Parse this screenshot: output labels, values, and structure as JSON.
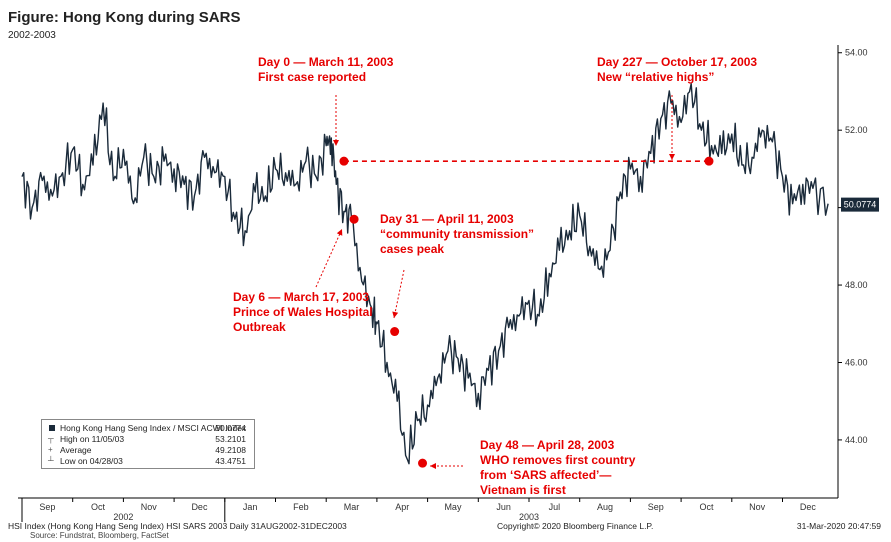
{
  "title": "Figure: Hong Kong during SARS",
  "subtitle": "2002-2003",
  "chart_data": {
    "type": "line",
    "title": "Figure: Hong Kong during SARS",
    "subtitle": "2002-2003",
    "series": [
      {
        "name": "Hong Kong Hang Seng Index / MSCI ACWI Index",
        "color": "#1a2a3a",
        "x_months": [
          0.0,
          0.2,
          0.4,
          0.6,
          0.8,
          1.0,
          1.2,
          1.4,
          1.6,
          1.8,
          2.0,
          2.2,
          2.4,
          2.6,
          2.8,
          3.0,
          3.2,
          3.4,
          3.6,
          3.8,
          4.0,
          4.2,
          4.4,
          4.6,
          4.8,
          5.0,
          5.2,
          5.4,
          5.6,
          5.8,
          6.0,
          6.1,
          6.2,
          6.35,
          6.5,
          6.7,
          6.9,
          7.0,
          7.2,
          7.4,
          7.6,
          7.8,
          8.0,
          8.2,
          8.4,
          8.6,
          8.8,
          9.0,
          9.2,
          9.4,
          9.6,
          9.8,
          10.0,
          10.2,
          10.4,
          10.6,
          10.8,
          11.0,
          11.2,
          11.4,
          11.6,
          11.8,
          12.0,
          12.2,
          12.4,
          12.6,
          12.8,
          13.0,
          13.2,
          13.4,
          13.6,
          13.8,
          14.0,
          14.2,
          14.4,
          14.6,
          14.8,
          15.0,
          15.2,
          15.4,
          15.6,
          15.9
        ],
        "values": [
          50.8,
          50.0,
          50.7,
          50.3,
          50.9,
          51.5,
          50.6,
          51.1,
          52.7,
          50.7,
          51.5,
          50.1,
          51.3,
          50.8,
          51.2,
          51.0,
          50.6,
          50.3,
          51.3,
          50.9,
          50.8,
          49.7,
          49.4,
          50.4,
          50.3,
          51.0,
          50.9,
          50.6,
          51.2,
          50.8,
          51.6,
          51.8,
          50.6,
          49.9,
          49.7,
          48.1,
          47.4,
          47.0,
          46.0,
          45.0,
          43.5,
          44.5,
          44.9,
          45.6,
          46.3,
          46.1,
          45.6,
          45.2,
          45.8,
          46.3,
          46.9,
          47.2,
          47.6,
          47.2,
          48.3,
          48.9,
          49.4,
          49.8,
          49.0,
          48.4,
          48.9,
          50.4,
          51.0,
          50.8,
          51.4,
          52.3,
          52.7,
          52.2,
          53.2,
          52.0,
          51.6,
          51.4,
          51.9,
          51.1,
          51.3,
          52.0,
          51.7,
          50.8,
          50.1,
          50.6,
          50.5,
          50.1
        ]
      }
    ],
    "x_ticks": [
      "Sep",
      "Oct",
      "Nov",
      "Dec",
      "Jan",
      "Feb",
      "Mar",
      "Apr",
      "May",
      "Jun",
      "Jul",
      "Aug",
      "Sep",
      "Oct",
      "Nov",
      "Dec"
    ],
    "x_years": [
      "2002",
      "2003"
    ],
    "y_ticks": [
      "44.00",
      "46.00",
      "48.00",
      "50.00",
      "52.00",
      "54.00"
    ],
    "ylim": [
      42.5,
      54.2
    ],
    "last_value_label": "50.0774",
    "annotations": [
      {
        "lines": [
          "Day 0 — March 11, 2003",
          "First case reported"
        ],
        "x_month": 6.35,
        "y": 51.2
      },
      {
        "lines": [
          "Day 6 — March 17, 2003",
          "Prince of Wales Hospital",
          "Outbreak"
        ],
        "x_month": 6.55,
        "y": 49.7
      },
      {
        "lines": [
          "Day 31 — April 11, 2003",
          "“community transmission”",
          "cases peak"
        ],
        "x_month": 7.35,
        "y": 46.8
      },
      {
        "lines": [
          "Day 48 — April 28, 2003",
          "WHO removes first country",
          "from ‘SARS affected’—",
          "Vietnam is first"
        ],
        "x_month": 7.9,
        "y": 43.4
      },
      {
        "lines": [
          "Day 227 — October 17, 2003",
          "New “relative highs”"
        ],
        "x_month": 13.55,
        "y": 51.2
      }
    ],
    "reference_line": {
      "from_x_month": 6.35,
      "to_x_month": 13.55,
      "y": 51.2,
      "color": "#e60000",
      "style": "dashed"
    },
    "legend_position": "bottom-left",
    "grid": false
  },
  "legend": {
    "rows": [
      {
        "label": "Hong Kong Hang Seng Index / MSCI ACWI Index",
        "value": "50.0774"
      },
      {
        "label": "High on 11/05/03",
        "value": "53.2101"
      },
      {
        "label": "Average",
        "value": "49.2108"
      },
      {
        "label": "Low on 04/28/03",
        "value": "43.4751"
      }
    ]
  },
  "footer": {
    "left": "HSI Index (Hong Kong Hang Seng Index) HSI SARS 2003  Daily 31AUG2002-31DEC2003",
    "center": "Copyright© 2020 Bloomberg Finance L.P.",
    "right": "31-Mar-2020 20:47:59",
    "source": "Source: Fundstrat, Bloomberg, FactSet"
  },
  "colors": {
    "line": "#1a2a3a",
    "annotation": "#e60000"
  }
}
